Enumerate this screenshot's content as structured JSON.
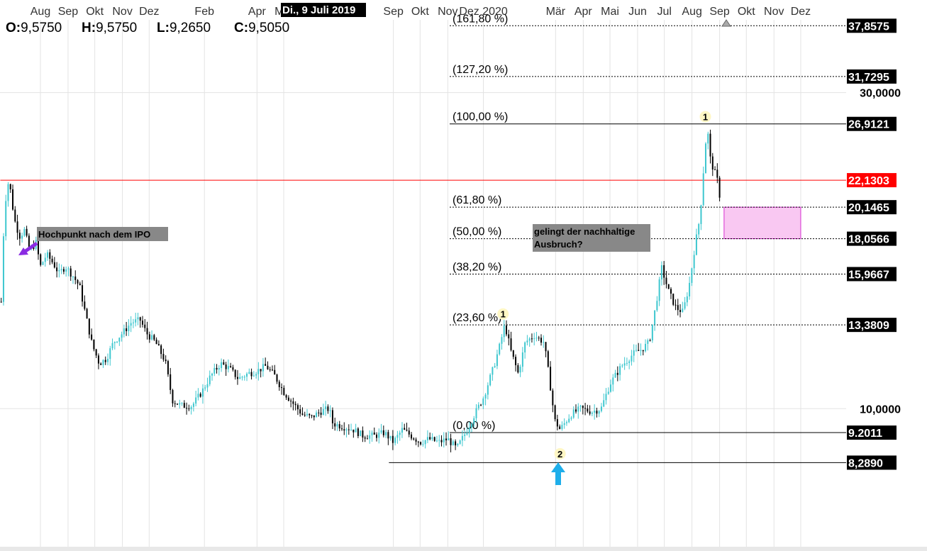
{
  "date_badge": "Di., 9 Juli 2019",
  "ohlc": {
    "open_label": "O:",
    "open_value": "9,5750",
    "high_label": "H:",
    "high_value": "9,5750",
    "low_label": "L:",
    "low_value": "9,2650",
    "close_label": "C:",
    "close_value": "9,5050"
  },
  "annotations": {
    "ipo_high": "Hochpunkt nach dem IPO",
    "breakout_line1": "gelingt der nachhaltige",
    "breakout_line2": "Ausbruch?",
    "wave_1_first": "1",
    "wave_1_second": "1",
    "wave_2": "2"
  },
  "colors": {
    "background": "#ffffff",
    "grid": "#e3e3e3",
    "candle_up": "#3ec7cf",
    "candle_down": "#000000",
    "resistance_line": "#ff0000",
    "badge_black": "#000000",
    "badge_red": "#ff0000",
    "annotation_bg": "#888888",
    "target_zone_fill": "#f9c8f2",
    "target_zone_border": "#d62fd0",
    "arrow_purple": "#8a2be2",
    "arrow_cyan": "#1eaeea",
    "wave_marker": "#fff7c4",
    "top_marker": "#999999"
  },
  "icons": {
    "ipo_arrow": "purple-down-left-arrow-icon",
    "low_arrow": "cyan-up-arrow-icon",
    "top_marker": "up-triangle-icon"
  },
  "chart_data": {
    "type": "candlestick",
    "y_scale": "log",
    "ylim": [
      7.0,
      40.0
    ],
    "x_range": [
      "2018-07-01",
      "2021-12-31"
    ],
    "grid": true,
    "x_ticks": [
      {
        "label": "Aug",
        "date": "2018-08-15"
      },
      {
        "label": "Sep",
        "date": "2018-09-15"
      },
      {
        "label": "Okt",
        "date": "2018-10-15"
      },
      {
        "label": "Nov",
        "date": "2018-11-15"
      },
      {
        "label": "Dez",
        "date": "2018-12-15"
      },
      {
        "label": "Feb",
        "date": "2019-02-15"
      },
      {
        "label": "Apr",
        "date": "2019-04-15"
      },
      {
        "label": "Mai",
        "date": "2019-05-15"
      },
      {
        "label": "Sep",
        "date": "2019-09-15"
      },
      {
        "label": "Okt",
        "date": "2019-10-15"
      },
      {
        "label": "Nov",
        "date": "2019-11-15"
      },
      {
        "label": "Dez 2020",
        "date": "2019-12-25"
      },
      {
        "label": "Mär",
        "date": "2020-03-15"
      },
      {
        "label": "Apr",
        "date": "2020-04-15"
      },
      {
        "label": "Mai",
        "date": "2020-05-15"
      },
      {
        "label": "Jun",
        "date": "2020-06-15"
      },
      {
        "label": "Jul",
        "date": "2020-07-15"
      },
      {
        "label": "Aug",
        "date": "2020-08-15"
      },
      {
        "label": "Sep",
        "date": "2020-09-15"
      },
      {
        "label": "Okt",
        "date": "2020-10-15"
      },
      {
        "label": "Nov",
        "date": "2020-11-15"
      },
      {
        "label": "Dez",
        "date": "2020-12-15"
      }
    ],
    "y_ticks": [
      {
        "label": "30,0000",
        "value": 30.0
      },
      {
        "label": "10,0000",
        "value": 10.0
      }
    ],
    "fibonacci_levels": [
      {
        "label": "(161,80 %)",
        "value": 37.8575,
        "badge": "37,8575",
        "style": "dotted"
      },
      {
        "label": "(127,20 %)",
        "value": 31.7295,
        "badge": "31,7295",
        "style": "dotted"
      },
      {
        "label": "(100,00 %)",
        "value": 26.9121,
        "badge": "26,9121",
        "style": "solid"
      },
      {
        "label": "(61,80 %)",
        "value": 20.1465,
        "badge": "20,1465",
        "style": "dotted"
      },
      {
        "label": "(50,00 %)",
        "value": 18.0566,
        "badge": "18,0566",
        "style": "dotted"
      },
      {
        "label": "(38,20 %)",
        "value": 15.9667,
        "badge": "15,9667",
        "style": "dotted"
      },
      {
        "label": "(23,60 %)",
        "value": 13.3809,
        "badge": "13,3809",
        "style": "dotted"
      },
      {
        "label": "(0,00 %)",
        "value": 9.2011,
        "badge": "9.2011",
        "style": "solid"
      }
    ],
    "horizontal_lines": [
      {
        "name": "ipo-high-resistance",
        "value": 22.1303,
        "badge": "22,1303",
        "color": "red",
        "start_date": "2018-07-01"
      },
      {
        "name": "low-line",
        "value": 8.289,
        "badge": "8,2890",
        "color": "black",
        "start_date": "2019-09-10"
      }
    ],
    "target_zone": {
      "from_date": "2020-09-20",
      "to_date": "2020-12-15",
      "low": 18.0566,
      "high": 20.1465
    },
    "price_path": [
      [
        "2018-07-02",
        14.5
      ],
      [
        "2018-07-05",
        19.0
      ],
      [
        "2018-07-08",
        21.5
      ],
      [
        "2018-07-11",
        22.13
      ],
      [
        "2018-07-14",
        20.5
      ],
      [
        "2018-07-18",
        19.0
      ],
      [
        "2018-07-23",
        18.2
      ],
      [
        "2018-07-28",
        18.6
      ],
      [
        "2018-08-03",
        17.3
      ],
      [
        "2018-08-10",
        17.8
      ],
      [
        "2018-08-15",
        16.4
      ],
      [
        "2018-08-22",
        17.1
      ],
      [
        "2018-08-29",
        16.6
      ],
      [
        "2018-09-05",
        16.0
      ],
      [
        "2018-09-12",
        16.4
      ],
      [
        "2018-09-20",
        15.9
      ],
      [
        "2018-09-28",
        15.3
      ],
      [
        "2018-10-05",
        13.8
      ],
      [
        "2018-10-12",
        12.5
      ],
      [
        "2018-10-20",
        11.7
      ],
      [
        "2018-10-28",
        11.9
      ],
      [
        "2018-11-05",
        12.6
      ],
      [
        "2018-11-15",
        13.0
      ],
      [
        "2018-11-25",
        13.5
      ],
      [
        "2018-12-05",
        13.6
      ],
      [
        "2018-12-12",
        13.0
      ],
      [
        "2018-12-22",
        12.6
      ],
      [
        "2019-01-02",
        11.8
      ],
      [
        "2019-01-10",
        10.3
      ],
      [
        "2019-01-20",
        10.1
      ],
      [
        "2019-02-01",
        10.1
      ],
      [
        "2019-02-12",
        10.6
      ],
      [
        "2019-02-22",
        11.2
      ],
      [
        "2019-03-05",
        11.7
      ],
      [
        "2019-03-15",
        11.5
      ],
      [
        "2019-03-25",
        11.1
      ],
      [
        "2019-04-05",
        11.3
      ],
      [
        "2019-04-15",
        11.4
      ],
      [
        "2019-04-25",
        11.6
      ],
      [
        "2019-05-05",
        11.2
      ],
      [
        "2019-05-15",
        10.6
      ],
      [
        "2019-05-25",
        10.2
      ],
      [
        "2019-06-05",
        9.8
      ],
      [
        "2019-06-15",
        9.7
      ],
      [
        "2019-06-25",
        9.9
      ],
      [
        "2019-07-05",
        10.0
      ],
      [
        "2019-07-09",
        9.5
      ],
      [
        "2019-07-20",
        9.4
      ],
      [
        "2019-08-01",
        9.3
      ],
      [
        "2019-08-12",
        9.1
      ],
      [
        "2019-08-25",
        9.1
      ],
      [
        "2019-09-05",
        9.2
      ],
      [
        "2019-09-15",
        8.9
      ],
      [
        "2019-09-25",
        9.3
      ],
      [
        "2019-10-05",
        9.1
      ],
      [
        "2019-10-15",
        8.9
      ],
      [
        "2019-10-25",
        9.0
      ],
      [
        "2019-11-05",
        8.9
      ],
      [
        "2019-11-15",
        9.0
      ],
      [
        "2019-11-25",
        8.7
      ],
      [
        "2019-12-05",
        9.2
      ],
      [
        "2019-12-15",
        9.8
      ],
      [
        "2019-12-25",
        10.4
      ],
      [
        "2020-01-05",
        11.5
      ],
      [
        "2020-01-12",
        12.4
      ],
      [
        "2020-01-18",
        13.4
      ],
      [
        "2020-01-25",
        12.2
      ],
      [
        "2020-02-02",
        11.3
      ],
      [
        "2020-02-10",
        12.6
      ],
      [
        "2020-02-20",
        12.9
      ],
      [
        "2020-03-02",
        12.6
      ],
      [
        "2020-03-08",
        11.1
      ],
      [
        "2020-03-14",
        9.6
      ],
      [
        "2020-03-20",
        9.3
      ],
      [
        "2020-04-01",
        9.8
      ],
      [
        "2020-04-12",
        10.0
      ],
      [
        "2020-04-25",
        9.9
      ],
      [
        "2020-05-05",
        10.0
      ],
      [
        "2020-05-15",
        10.9
      ],
      [
        "2020-05-28",
        11.6
      ],
      [
        "2020-06-10",
        12.1
      ],
      [
        "2020-06-20",
        12.3
      ],
      [
        "2020-06-28",
        12.6
      ],
      [
        "2020-07-05",
        14.2
      ],
      [
        "2020-07-12",
        16.3
      ],
      [
        "2020-07-20",
        15.0
      ],
      [
        "2020-07-28",
        14.2
      ],
      [
        "2020-08-05",
        14.0
      ],
      [
        "2020-08-12",
        15.4
      ],
      [
        "2020-08-18",
        17.5
      ],
      [
        "2020-08-24",
        19.5
      ],
      [
        "2020-08-28",
        23.0
      ],
      [
        "2020-09-01",
        26.9
      ],
      [
        "2020-09-04",
        24.0
      ],
      [
        "2020-09-08",
        23.0
      ],
      [
        "2020-09-12",
        22.3
      ],
      [
        "2020-09-16",
        20.6
      ]
    ],
    "wave_markers": [
      {
        "name": "wave-1-first",
        "date": "2020-01-16",
        "value": 13.9
      },
      {
        "name": "wave-2",
        "date": "2020-03-20",
        "value": 8.55
      },
      {
        "name": "wave-1-second",
        "date": "2020-08-30",
        "value": 27.6
      }
    ]
  }
}
